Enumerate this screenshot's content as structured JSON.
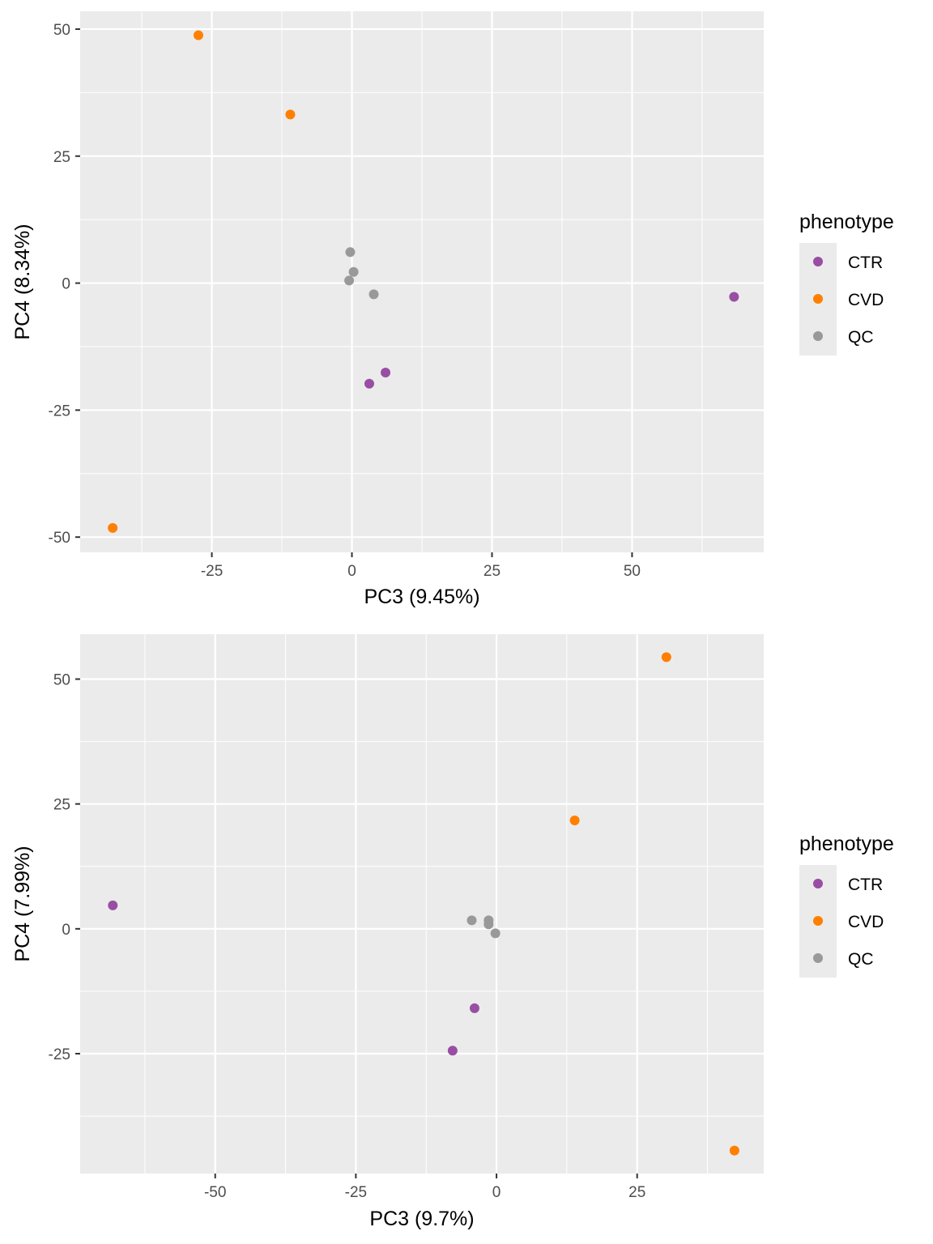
{
  "colors": {
    "CTR": "#984ea3",
    "CVD": "#ff7f00",
    "QC": "#999999",
    "panel": "#ebebeb",
    "grid": "#ffffff"
  },
  "chart_data": [
    {
      "type": "scatter",
      "xlabel": "PC3 (9.45%)",
      "ylabel": "PC4 (8.34%)",
      "xlim": [
        -48.5,
        73.5
      ],
      "ylim": [
        -53,
        53.5
      ],
      "x_major": [
        -25,
        0,
        25,
        50
      ],
      "x_minor": [
        -37.5,
        -12.5,
        12.5,
        37.5,
        62.5
      ],
      "y_major": [
        -50,
        -25,
        0,
        25,
        50
      ],
      "y_minor": [
        -37.5,
        -12.5,
        12.5,
        37.5
      ],
      "x_tick_labels": [
        "-25",
        "0",
        "25",
        "50"
      ],
      "y_tick_labels": [
        "-50",
        "-25",
        "0",
        "25",
        "50"
      ],
      "grid": true,
      "legend": {
        "title": "phenotype",
        "position": "right",
        "entries": [
          "CTR",
          "CVD",
          "QC"
        ]
      },
      "series": [
        {
          "name": "CTR",
          "points": [
            [
              68.2,
              -2.7
            ],
            [
              3.1,
              -19.8
            ],
            [
              6.0,
              -17.6
            ]
          ]
        },
        {
          "name": "CVD",
          "points": [
            [
              -27.4,
              48.8
            ],
            [
              -11.0,
              33.2
            ],
            [
              -42.7,
              -48.2
            ]
          ]
        },
        {
          "name": "QC",
          "points": [
            [
              -0.3,
              6.1
            ],
            [
              0.3,
              2.2
            ],
            [
              -0.5,
              0.5
            ],
            [
              3.9,
              -2.2
            ]
          ]
        }
      ]
    },
    {
      "type": "scatter",
      "xlabel": "PC3 (9.7%)",
      "ylabel": "PC4 (7.99%)",
      "xlim": [
        -74,
        47.5
      ],
      "ylim": [
        -49,
        59
      ],
      "x_major": [
        -50,
        -25,
        0,
        25
      ],
      "x_minor": [
        -62.5,
        -37.5,
        -12.5,
        12.5,
        37.5
      ],
      "y_major": [
        -25,
        0,
        25,
        50
      ],
      "y_minor": [
        -37.5,
        -12.5,
        12.5,
        37.5
      ],
      "x_tick_labels": [
        "-50",
        "-25",
        "0",
        "25"
      ],
      "y_tick_labels": [
        "-25",
        "0",
        "25",
        "50"
      ],
      "grid": true,
      "legend": {
        "title": "phenotype",
        "position": "right",
        "entries": [
          "CTR",
          "CVD",
          "QC"
        ]
      },
      "series": [
        {
          "name": "CTR",
          "points": [
            [
              -68.2,
              4.7
            ],
            [
              -3.9,
              -15.9
            ],
            [
              -7.8,
              -24.4
            ]
          ]
        },
        {
          "name": "CVD",
          "points": [
            [
              30.2,
              54.4
            ],
            [
              13.9,
              21.7
            ],
            [
              42.3,
              -44.4
            ]
          ]
        },
        {
          "name": "QC",
          "points": [
            [
              -4.4,
              1.7
            ],
            [
              -1.4,
              1.7
            ],
            [
              -1.4,
              0.9
            ],
            [
              -0.2,
              -0.9
            ]
          ]
        }
      ]
    }
  ]
}
